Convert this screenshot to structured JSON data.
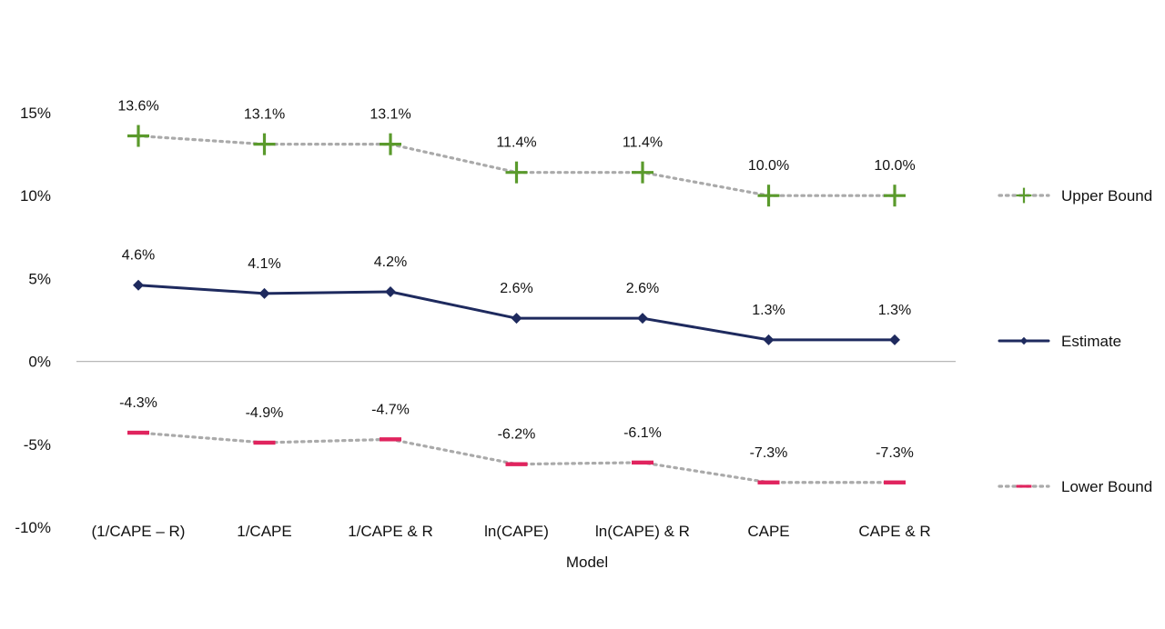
{
  "chart_data": {
    "type": "line",
    "categories": [
      "(1/CAPE – R)",
      "1/CAPE",
      "1/CAPE & R",
      "ln(CAPE)",
      "ln(CAPE) & R",
      "CAPE",
      "CAPE & R"
    ],
    "xlabel": "Model",
    "ylabel": "",
    "ylim": [
      -10,
      15
    ],
    "yticks": [
      15,
      10,
      5,
      0,
      -5,
      -10
    ],
    "ytick_labels": [
      "15%",
      "10%",
      "5%",
      "0%",
      "-5%",
      "-10%"
    ],
    "grid": false,
    "legend_position": "right",
    "series": [
      {
        "name": "Upper Bound",
        "values": [
          13.6,
          13.1,
          13.1,
          11.4,
          11.4,
          10.0,
          10.0
        ],
        "labels": [
          "13.6%",
          "13.1%",
          "13.1%",
          "11.4%",
          "11.4%",
          "10.0%",
          "10.0%"
        ],
        "line_style": "dotted",
        "line_color": "#aaaaaa",
        "marker": "plus",
        "marker_color": "#5a9a2c"
      },
      {
        "name": "Estimate",
        "values": [
          4.6,
          4.1,
          4.2,
          2.6,
          2.6,
          1.3,
          1.3
        ],
        "labels": [
          "4.6%",
          "4.1%",
          "4.2%",
          "2.6%",
          "2.6%",
          "1.3%",
          "1.3%"
        ],
        "line_style": "solid",
        "line_color": "#1e2a5e",
        "marker": "diamond",
        "marker_color": "#1e2a5e"
      },
      {
        "name": "Lower Bound",
        "values": [
          -4.3,
          -4.9,
          -4.7,
          -6.2,
          -6.1,
          -7.3,
          -7.3
        ],
        "labels": [
          "-4.3%",
          "-4.9%",
          "-4.7%",
          "-6.2%",
          "-6.1%",
          "-7.3%",
          "-7.3%"
        ],
        "line_style": "dotted",
        "line_color": "#aaaaaa",
        "marker": "dash",
        "marker_color": "#e0245e"
      }
    ]
  }
}
